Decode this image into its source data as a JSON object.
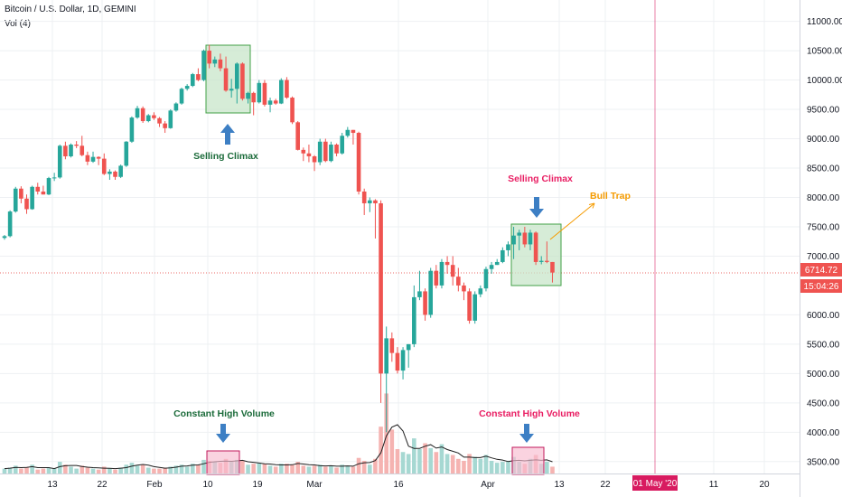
{
  "header": {
    "symbol": "Bitcoin / U.S. Dollar, 1D, GEMINI",
    "indicator": "Vol (4)"
  },
  "colors": {
    "up": "#26a69a",
    "down": "#ef5350",
    "up_vol": "#a6d8d2",
    "down_vol": "#f5b3b1",
    "price_line": "#e53935",
    "event_line": "#d81b60",
    "box_green_fill": "#c8e6c9",
    "box_green_stroke": "#43a047",
    "box_pink_fill": "#f8bbd0",
    "box_pink_stroke": "#c2185b",
    "arrow": "#3d7fc4",
    "green_text": "#1b6b3a",
    "pink_text": "#e91e63",
    "orange_text": "#f59b00"
  },
  "price_axis": {
    "ticks": [
      "11000.00",
      "10500.00",
      "10000.00",
      "9500.00",
      "9000.00",
      "8500.00",
      "8000.00",
      "7500.00",
      "7000.00",
      "6000.00",
      "5500.00",
      "5000.00",
      "4500.00",
      "4000.00",
      "3500.00"
    ],
    "current_price": "6714.72",
    "countdown": "15:04:26"
  },
  "time_axis": {
    "labels": [
      "13",
      "22",
      "Feb",
      "10",
      "19",
      "Mar",
      "16",
      "Apr",
      "13",
      "22",
      "11",
      "20"
    ],
    "event_label": "01 May '20"
  },
  "annotations": {
    "selling_climax_1": "Selling Climax",
    "selling_climax_2": "Selling Climax",
    "bull_trap": "Bull Trap",
    "high_volume_1": "Constant High Volume",
    "high_volume_2": "Constant High Volume"
  },
  "chart_data": {
    "type": "candlestick",
    "title": "Bitcoin / U.S. Dollar, 1D, GEMINI",
    "ylim": [
      3300,
      11250
    ],
    "current_price": 6714.72,
    "date_range": [
      "2020-01-04",
      "2020-04-14"
    ],
    "ohlc": [
      [
        7310,
        7360,
        7280,
        7340
      ],
      [
        7340,
        7780,
        7320,
        7760
      ],
      [
        7760,
        8180,
        7740,
        8150
      ],
      [
        8150,
        8190,
        7900,
        7980
      ],
      [
        7980,
        8050,
        7720,
        7800
      ],
      [
        7800,
        8200,
        7790,
        8180
      ],
      [
        8180,
        8250,
        8050,
        8100
      ],
      [
        8100,
        8200,
        8050,
        8050
      ],
      [
        8050,
        8350,
        8040,
        8330
      ],
      [
        8330,
        8420,
        8280,
        8340
      ],
      [
        8340,
        8900,
        8320,
        8880
      ],
      [
        8880,
        8950,
        8650,
        8700
      ],
      [
        8700,
        8920,
        8680,
        8900
      ],
      [
        8900,
        8960,
        8840,
        8880
      ],
      [
        8880,
        9050,
        8700,
        8720
      ],
      [
        8720,
        8780,
        8550,
        8610
      ],
      [
        8610,
        8780,
        8590,
        8690
      ],
      [
        8690,
        8700,
        8550,
        8660
      ],
      [
        8660,
        8750,
        8380,
        8400
      ],
      [
        8400,
        8480,
        8300,
        8440
      ],
      [
        8440,
        8460,
        8300,
        8350
      ],
      [
        8350,
        8560,
        8330,
        8540
      ],
      [
        8540,
        8960,
        8520,
        8950
      ],
      [
        8950,
        9380,
        8930,
        9360
      ],
      [
        9360,
        9560,
        9340,
        9520
      ],
      [
        9520,
        9550,
        9270,
        9300
      ],
      [
        9300,
        9420,
        9280,
        9400
      ],
      [
        9400,
        9450,
        9320,
        9350
      ],
      [
        9350,
        9370,
        9200,
        9260
      ],
      [
        9260,
        9300,
        9100,
        9180
      ],
      [
        9180,
        9500,
        9170,
        9480
      ],
      [
        9480,
        9620,
        9460,
        9600
      ],
      [
        9600,
        9870,
        9580,
        9850
      ],
      [
        9850,
        9930,
        9820,
        9900
      ],
      [
        9900,
        10120,
        9880,
        10100
      ],
      [
        10100,
        10200,
        9980,
        10000
      ],
      [
        10000,
        10520,
        9980,
        10500
      ],
      [
        10500,
        10600,
        10200,
        10280
      ],
      [
        10280,
        10400,
        10220,
        10350
      ],
      [
        10350,
        10450,
        10150,
        10200
      ],
      [
        10200,
        10400,
        9800,
        9820
      ],
      [
        9820,
        10020,
        9700,
        9850
      ],
      [
        9850,
        10300,
        9600,
        10280
      ],
      [
        10280,
        10300,
        9650,
        9680
      ],
      [
        9680,
        9800,
        9600,
        9780
      ],
      [
        9780,
        9800,
        9400,
        9620
      ],
      [
        9620,
        10000,
        9600,
        9950
      ],
      [
        9950,
        10000,
        9550,
        9580
      ],
      [
        9580,
        9700,
        9450,
        9650
      ],
      [
        9650,
        9680,
        9580,
        9600
      ],
      [
        9600,
        10030,
        9590,
        10000
      ],
      [
        10000,
        10050,
        9680,
        9700
      ],
      [
        9700,
        9720,
        9250,
        9280
      ],
      [
        9280,
        9300,
        8800,
        8810
      ],
      [
        8810,
        8850,
        8620,
        8750
      ],
      [
        8750,
        8900,
        8600,
        8700
      ],
      [
        8700,
        8720,
        8450,
        8600
      ],
      [
        8600,
        9000,
        8550,
        8950
      ],
      [
        8950,
        9000,
        8600,
        8620
      ],
      [
        8620,
        8950,
        8600,
        8900
      ],
      [
        8900,
        8920,
        8700,
        8750
      ],
      [
        8750,
        9100,
        8730,
        9050
      ],
      [
        9050,
        9200,
        9020,
        9150
      ],
      [
        9150,
        9150,
        8900,
        9100
      ],
      [
        9100,
        9120,
        8050,
        8100
      ],
      [
        8100,
        8150,
        7700,
        7900
      ],
      [
        7900,
        8000,
        7750,
        7950
      ],
      [
        7950,
        7970,
        7300,
        7900
      ],
      [
        7900,
        7950,
        4500,
        5000
      ],
      [
        5000,
        5800,
        4000,
        5600
      ],
      [
        5600,
        5700,
        5200,
        5350
      ],
      [
        5350,
        5450,
        5000,
        5050
      ],
      [
        5050,
        5450,
        4900,
        5400
      ],
      [
        5400,
        5500,
        5100,
        5500
      ],
      [
        5500,
        6500,
        5450,
        6300
      ],
      [
        6300,
        6750,
        6250,
        6400
      ],
      [
        6400,
        6450,
        5900,
        6000
      ],
      [
        6000,
        6800,
        5950,
        6750
      ],
      [
        6750,
        6850,
        6450,
        6500
      ],
      [
        6500,
        6950,
        6450,
        6900
      ],
      [
        6900,
        7000,
        6700,
        6850
      ],
      [
        6850,
        7000,
        6500,
        6650
      ],
      [
        6650,
        6800,
        6400,
        6500
      ],
      [
        6500,
        6550,
        6250,
        6400
      ],
      [
        6400,
        6450,
        5850,
        5900
      ],
      [
        5900,
        6400,
        5850,
        6350
      ],
      [
        6350,
        6500,
        6300,
        6450
      ],
      [
        6450,
        6820,
        6400,
        6780
      ],
      [
        6780,
        6900,
        6700,
        6850
      ],
      [
        6850,
        6950,
        6850,
        6900
      ],
      [
        6900,
        7150,
        6880,
        7100
      ],
      [
        7100,
        7250,
        7000,
        7200
      ],
      [
        7200,
        7500,
        6950,
        7350
      ],
      [
        7350,
        7450,
        7100,
        7400
      ],
      [
        7400,
        7500,
        7150,
        7200
      ],
      [
        7200,
        7450,
        7100,
        7400
      ],
      [
        7400,
        7420,
        6850,
        6900
      ],
      [
        6900,
        7000,
        6860,
        6920
      ],
      [
        6920,
        7250,
        6880,
        6900
      ],
      [
        6900,
        6900,
        6550,
        6720
      ]
    ],
    "volume": [
      [
        0.5,
        1
      ],
      [
        0.6,
        1
      ],
      [
        0.8,
        1
      ],
      [
        0.5,
        0
      ],
      [
        0.6,
        0
      ],
      [
        0.9,
        1
      ],
      [
        0.4,
        0
      ],
      [
        0.5,
        0
      ],
      [
        0.6,
        1
      ],
      [
        0.5,
        1
      ],
      [
        1.2,
        1
      ],
      [
        0.9,
        0
      ],
      [
        0.7,
        1
      ],
      [
        0.5,
        1
      ],
      [
        0.8,
        0
      ],
      [
        0.6,
        0
      ],
      [
        0.5,
        1
      ],
      [
        0.4,
        0
      ],
      [
        0.7,
        0
      ],
      [
        0.5,
        1
      ],
      [
        0.4,
        0
      ],
      [
        0.6,
        1
      ],
      [
        0.9,
        1
      ],
      [
        1.1,
        1
      ],
      [
        0.8,
        1
      ],
      [
        0.9,
        0
      ],
      [
        0.6,
        1
      ],
      [
        0.5,
        0
      ],
      [
        0.5,
        0
      ],
      [
        0.6,
        0
      ],
      [
        0.7,
        1
      ],
      [
        0.8,
        1
      ],
      [
        0.9,
        1
      ],
      [
        0.7,
        1
      ],
      [
        1.0,
        1
      ],
      [
        0.9,
        0
      ],
      [
        1.4,
        1
      ],
      [
        1.3,
        0
      ],
      [
        1.2,
        1
      ],
      [
        1.1,
        0
      ],
      [
        1.5,
        0
      ],
      [
        1.2,
        1
      ],
      [
        1.4,
        1
      ],
      [
        1.3,
        0
      ],
      [
        0.9,
        1
      ],
      [
        1.0,
        0
      ],
      [
        1.1,
        1
      ],
      [
        1.0,
        0
      ],
      [
        0.8,
        1
      ],
      [
        0.7,
        0
      ],
      [
        1.0,
        1
      ],
      [
        1.0,
        0
      ],
      [
        0.9,
        0
      ],
      [
        1.2,
        0
      ],
      [
        0.8,
        0
      ],
      [
        0.7,
        1
      ],
      [
        0.8,
        0
      ],
      [
        0.9,
        1
      ],
      [
        0.7,
        0
      ],
      [
        0.8,
        1
      ],
      [
        0.6,
        0
      ],
      [
        0.9,
        1
      ],
      [
        0.8,
        1
      ],
      [
        0.7,
        0
      ],
      [
        1.6,
        0
      ],
      [
        1.3,
        0
      ],
      [
        0.9,
        1
      ],
      [
        1.5,
        0
      ],
      [
        4.8,
        0
      ],
      [
        8.2,
        0
      ],
      [
        4.5,
        0
      ],
      [
        2.5,
        0
      ],
      [
        2.2,
        1
      ],
      [
        2.0,
        1
      ],
      [
        3.6,
        1
      ],
      [
        2.5,
        1
      ],
      [
        3.1,
        0
      ],
      [
        2.6,
        1
      ],
      [
        2.2,
        0
      ],
      [
        3.0,
        1
      ],
      [
        2.0,
        1
      ],
      [
        1.9,
        0
      ],
      [
        1.5,
        0
      ],
      [
        1.3,
        0
      ],
      [
        2.0,
        0
      ],
      [
        1.7,
        1
      ],
      [
        1.5,
        1
      ],
      [
        1.9,
        1
      ],
      [
        1.3,
        1
      ],
      [
        1.1,
        1
      ],
      [
        1.2,
        1
      ],
      [
        1.3,
        1
      ],
      [
        1.7,
        1
      ],
      [
        1.2,
        1
      ],
      [
        1.0,
        0
      ],
      [
        1.5,
        1
      ],
      [
        1.9,
        0
      ],
      [
        1.0,
        1
      ],
      [
        1.2,
        1
      ],
      [
        0.7,
        0
      ]
    ]
  }
}
